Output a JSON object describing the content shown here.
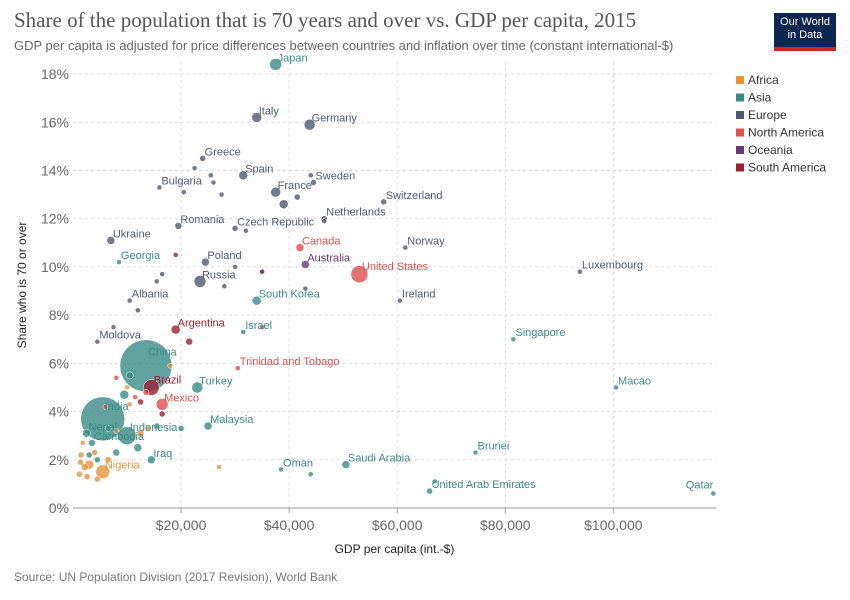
{
  "title": "Share of the population that is 70 years and over vs. GDP per capita, 2015",
  "subtitle": "GDP per capita is adjusted for price differences between countries and inflation over time (constant international-$)",
  "logo": {
    "line1": "Our World",
    "line2": "in Data"
  },
  "source": "Source: UN Population Division (2017 Revision), World Bank",
  "chart_data": {
    "type": "scatter",
    "xlabel": "GDP per capita (int.-$)",
    "ylabel": "Share who is 70 or over",
    "xlim": [
      0,
      119000
    ],
    "ylim": [
      0,
      18.5
    ],
    "x_ticks": [
      20000,
      40000,
      60000,
      80000,
      100000
    ],
    "x_tick_labels": [
      "$20,000",
      "$40,000",
      "$60,000",
      "$80,000",
      "$100,000"
    ],
    "y_ticks": [
      0,
      2,
      4,
      6,
      8,
      10,
      12,
      14,
      16,
      18
    ],
    "y_tick_labels": [
      "0%",
      "2%",
      "4%",
      "6%",
      "8%",
      "10%",
      "12%",
      "14%",
      "16%",
      "18%"
    ],
    "grid": true,
    "legend_position": "right",
    "legend": [
      {
        "name": "Africa",
        "color": "#e5943c"
      },
      {
        "name": "Asia",
        "color": "#3a8a86"
      },
      {
        "name": "Europe",
        "color": "#4f5a72"
      },
      {
        "name": "North America",
        "color": "#e04e4e"
      },
      {
        "name": "Oceania",
        "color": "#6a3674"
      },
      {
        "name": "South America",
        "color": "#9a2032"
      }
    ],
    "points": [
      {
        "label": "Japan",
        "region": "Asia",
        "x": 37500,
        "y": 18.4,
        "size": 6
      },
      {
        "label": "Italy",
        "region": "Europe",
        "x": 34000,
        "y": 16.2,
        "size": 5
      },
      {
        "label": "Germany",
        "region": "Europe",
        "x": 43800,
        "y": 15.9,
        "size": 5.5
      },
      {
        "label": "Greece",
        "region": "Europe",
        "x": 24000,
        "y": 14.5,
        "size": 3
      },
      {
        "label": "Spain",
        "region": "Europe",
        "x": 31500,
        "y": 13.8,
        "size": 4.5
      },
      {
        "label": "Sweden",
        "region": "Europe",
        "x": 44500,
        "y": 13.5,
        "size": 3
      },
      {
        "label": "France",
        "region": "Europe",
        "x": 37500,
        "y": 13.1,
        "size": 5
      },
      {
        "label": "Bulgaria",
        "region": "Europe",
        "x": 16000,
        "y": 13.3,
        "size": 2.5
      },
      {
        "label": "Switzerland",
        "region": "Europe",
        "x": 57500,
        "y": 12.7,
        "size": 3
      },
      {
        "label": "Netherlands",
        "region": "Europe",
        "x": 46500,
        "y": 12.0,
        "size": 3
      },
      {
        "label": "Romania",
        "region": "Europe",
        "x": 19500,
        "y": 11.7,
        "size": 3.5
      },
      {
        "label": "Czech Republic",
        "region": "Europe",
        "x": 30000,
        "y": 11.6,
        "size": 3
      },
      {
        "label": "Ukraine",
        "region": "Europe",
        "x": 7000,
        "y": 11.1,
        "size": 4
      },
      {
        "label": "Canada",
        "region": "North America",
        "x": 42000,
        "y": 10.8,
        "size": 4
      },
      {
        "label": "Norway",
        "region": "Europe",
        "x": 61500,
        "y": 10.8,
        "size": 2.5
      },
      {
        "label": "Georgia",
        "region": "Asia",
        "x": 8500,
        "y": 10.2,
        "size": 2.5
      },
      {
        "label": "Poland",
        "region": "Europe",
        "x": 24500,
        "y": 10.2,
        "size": 4
      },
      {
        "label": "Australia",
        "region": "Oceania",
        "x": 43000,
        "y": 10.1,
        "size": 4
      },
      {
        "label": "United States",
        "region": "North America",
        "x": 53000,
        "y": 9.7,
        "size": 8.5
      },
      {
        "label": "Luxembourg",
        "region": "Europe",
        "x": 93800,
        "y": 9.8,
        "size": 2.5
      },
      {
        "label": "Russia",
        "region": "Europe",
        "x": 23500,
        "y": 9.4,
        "size": 6
      },
      {
        "label": "Ireland",
        "region": "Europe",
        "x": 60500,
        "y": 8.6,
        "size": 2.5
      },
      {
        "label": "Albania",
        "region": "Europe",
        "x": 10500,
        "y": 8.6,
        "size": 2.5
      },
      {
        "label": "South Korea",
        "region": "Asia",
        "x": 34000,
        "y": 8.6,
        "size": 4.5
      },
      {
        "label": "Argentina",
        "region": "South America",
        "x": 19000,
        "y": 7.4,
        "size": 4.5
      },
      {
        "label": "Israel",
        "region": "Asia",
        "x": 31500,
        "y": 7.3,
        "size": 2.5
      },
      {
        "label": "Singapore",
        "region": "Asia",
        "x": 81500,
        "y": 7.0,
        "size": 2.5
      },
      {
        "label": "Moldova",
        "region": "Europe",
        "x": 4500,
        "y": 6.9,
        "size": 2.5
      },
      {
        "label": "China",
        "region": "Asia",
        "x": 13500,
        "y": 5.9,
        "size": 26
      },
      {
        "label": "Trinidad and Tobago",
        "region": "North America",
        "x": 30500,
        "y": 5.8,
        "size": 2.5
      },
      {
        "label": "Brazil",
        "region": "South America",
        "x": 14500,
        "y": 5.0,
        "size": 8
      },
      {
        "label": "Turkey",
        "region": "Asia",
        "x": 23000,
        "y": 5.0,
        "size": 5.5
      },
      {
        "label": "Macao",
        "region": "Asia",
        "x": 100500,
        "y": 5.0,
        "size": 2.5
      },
      {
        "label": "India",
        "region": "Asia",
        "x": 5500,
        "y": 3.7,
        "size": 22
      },
      {
        "label": "Mexico",
        "region": "North America",
        "x": 16500,
        "y": 4.3,
        "size": 6
      },
      {
        "label": "Indonesia",
        "region": "Asia",
        "x": 10000,
        "y": 3.0,
        "size": 9
      },
      {
        "label": "Nepal",
        "region": "Asia",
        "x": 2500,
        "y": 3.1,
        "size": 4
      },
      {
        "label": "Malaysia",
        "region": "Asia",
        "x": 25000,
        "y": 3.4,
        "size": 4
      },
      {
        "label": "Cambodia",
        "region": "Asia",
        "x": 3500,
        "y": 2.7,
        "size": 3.5
      },
      {
        "label": "Brunei",
        "region": "Asia",
        "x": 74500,
        "y": 2.3,
        "size": 2.5
      },
      {
        "label": "Iraq",
        "region": "Asia",
        "x": 14500,
        "y": 2.0,
        "size": 4
      },
      {
        "label": "Saudi Arabia",
        "region": "Asia",
        "x": 50500,
        "y": 1.8,
        "size": 4
      },
      {
        "label": "Oman",
        "region": "Asia",
        "x": 38500,
        "y": 1.6,
        "size": 2.5
      },
      {
        "label": "Nigeria",
        "region": "Africa",
        "x": 5500,
        "y": 1.5,
        "size": 7
      },
      {
        "label": "United Arab Emirates",
        "region": "Asia",
        "x": 66000,
        "y": 0.7,
        "size": 3
      },
      {
        "label": "Qatar",
        "region": "Asia",
        "x": 118500,
        "y": 0.6,
        "size": 2.5
      },
      {
        "label": "",
        "region": "Europe",
        "x": 20500,
        "y": 13.1,
        "size": 2.5
      },
      {
        "label": "",
        "region": "Europe",
        "x": 26000,
        "y": 13.5,
        "size": 2.5
      },
      {
        "label": "",
        "region": "Europe",
        "x": 25500,
        "y": 13.8,
        "size": 2.5
      },
      {
        "label": "",
        "region": "Europe",
        "x": 22500,
        "y": 14.1,
        "size": 2.5
      },
      {
        "label": "",
        "region": "Europe",
        "x": 27500,
        "y": 13.0,
        "size": 2.5
      },
      {
        "label": "",
        "region": "Europe",
        "x": 39000,
        "y": 12.6,
        "size": 4.5
      },
      {
        "label": "",
        "region": "Europe",
        "x": 41500,
        "y": 12.9,
        "size": 3
      },
      {
        "label": "",
        "region": "Europe",
        "x": 44000,
        "y": 13.8,
        "size": 2.5
      },
      {
        "label": "",
        "region": "Europe",
        "x": 46500,
        "y": 11.9,
        "size": 2.5
      },
      {
        "label": "",
        "region": "Europe",
        "x": 32000,
        "y": 11.5,
        "size": 2.5
      },
      {
        "label": "",
        "region": "Europe",
        "x": 16500,
        "y": 9.7,
        "size": 2.5
      },
      {
        "label": "",
        "region": "Europe",
        "x": 28000,
        "y": 9.2,
        "size": 2.5
      },
      {
        "label": "",
        "region": "Europe",
        "x": 30000,
        "y": 10.0,
        "size": 2.5
      },
      {
        "label": "",
        "region": "Europe",
        "x": 15500,
        "y": 9.4,
        "size": 2.5
      },
      {
        "label": "",
        "region": "Europe",
        "x": 12000,
        "y": 8.2,
        "size": 2.5
      },
      {
        "label": "",
        "region": "Europe",
        "x": 43000,
        "y": 9.1,
        "size": 2.5
      },
      {
        "label": "",
        "region": "Europe",
        "x": 7500,
        "y": 7.5,
        "size": 2.5
      },
      {
        "label": "",
        "region": "Europe",
        "x": 35000,
        "y": 9.8,
        "size": 2.5
      },
      {
        "label": "",
        "region": "South America",
        "x": 19000,
        "y": 10.5,
        "size": 2.5
      },
      {
        "label": "",
        "region": "South America",
        "x": 21500,
        "y": 6.9,
        "size": 3.5
      },
      {
        "label": "",
        "region": "South America",
        "x": 16500,
        "y": 3.9,
        "size": 3
      },
      {
        "label": "",
        "region": "South America",
        "x": 12500,
        "y": 4.4,
        "size": 3
      },
      {
        "label": "",
        "region": "North America",
        "x": 35000,
        "y": 7.5,
        "size": 2.5
      },
      {
        "label": "",
        "region": "North America",
        "x": 13500,
        "y": 4.8,
        "size": 3
      },
      {
        "label": "",
        "region": "North America",
        "x": 8000,
        "y": 5.4,
        "size": 2.5
      },
      {
        "label": "",
        "region": "North America",
        "x": 6000,
        "y": 4.2,
        "size": 2.5
      },
      {
        "label": "",
        "region": "North America",
        "x": 11500,
        "y": 4.6,
        "size": 2.5
      },
      {
        "label": "",
        "region": "Oceania",
        "x": 35000,
        "y": 9.8,
        "size": 2.5
      },
      {
        "label": "",
        "region": "Asia",
        "x": 10500,
        "y": 5.5,
        "size": 3.5
      },
      {
        "label": "",
        "region": "Asia",
        "x": 20000,
        "y": 3.3,
        "size": 3
      },
      {
        "label": "",
        "region": "Asia",
        "x": 15500,
        "y": 3.4,
        "size": 3
      },
      {
        "label": "",
        "region": "Asia",
        "x": 12000,
        "y": 2.5,
        "size": 4
      },
      {
        "label": "",
        "region": "Asia",
        "x": 8000,
        "y": 2.3,
        "size": 3.5
      },
      {
        "label": "",
        "region": "Asia",
        "x": 6500,
        "y": 3.3,
        "size": 3
      },
      {
        "label": "",
        "region": "Asia",
        "x": 4500,
        "y": 2.0,
        "size": 3
      },
      {
        "label": "",
        "region": "Asia",
        "x": 3000,
        "y": 2.2,
        "size": 3
      },
      {
        "label": "",
        "region": "Asia",
        "x": 44000,
        "y": 1.4,
        "size": 2.5
      },
      {
        "label": "",
        "region": "Asia",
        "x": 67000,
        "y": 1.1,
        "size": 2.5
      },
      {
        "label": "",
        "region": "Asia",
        "x": 9500,
        "y": 4.7,
        "size": 4.5
      },
      {
        "label": "",
        "region": "Africa",
        "x": 3000,
        "y": 1.8,
        "size": 4.5
      },
      {
        "label": "",
        "region": "Africa",
        "x": 1500,
        "y": 2.2,
        "size": 3
      },
      {
        "label": "",
        "region": "Africa",
        "x": 2200,
        "y": 1.7,
        "size": 3.5
      },
      {
        "label": "",
        "region": "Africa",
        "x": 1200,
        "y": 1.4,
        "size": 3
      },
      {
        "label": "",
        "region": "Africa",
        "x": 4000,
        "y": 2.3,
        "size": 3
      },
      {
        "label": "",
        "region": "Africa",
        "x": 6500,
        "y": 2.0,
        "size": 3
      },
      {
        "label": "",
        "region": "Africa",
        "x": 1800,
        "y": 2.7,
        "size": 2.5
      },
      {
        "label": "",
        "region": "Africa",
        "x": 2600,
        "y": 1.3,
        "size": 3
      },
      {
        "label": "",
        "region": "Africa",
        "x": 1400,
        "y": 1.9,
        "size": 3
      },
      {
        "label": "",
        "region": "Africa",
        "x": 10500,
        "y": 4.3,
        "size": 2.5
      },
      {
        "label": "",
        "region": "Africa",
        "x": 8000,
        "y": 3.2,
        "size": 2.5
      },
      {
        "label": "",
        "region": "Africa",
        "x": 12500,
        "y": 3.1,
        "size": 3.5
      },
      {
        "label": "",
        "region": "Africa",
        "x": 14000,
        "y": 3.3,
        "size": 2.5
      },
      {
        "label": "",
        "region": "Africa",
        "x": 27000,
        "y": 1.7,
        "size": 2.5
      },
      {
        "label": "",
        "region": "Africa",
        "x": 18000,
        "y": 5.9,
        "size": 2.5
      },
      {
        "label": "",
        "region": "Africa",
        "x": 10000,
        "y": 5.0,
        "size": 2.5
      },
      {
        "label": "",
        "region": "Africa",
        "x": 4500,
        "y": 1.2,
        "size": 3
      }
    ]
  }
}
